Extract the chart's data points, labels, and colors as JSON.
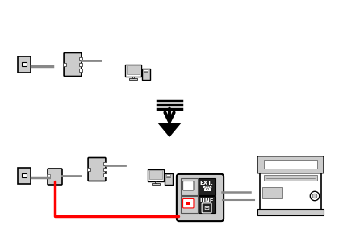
{
  "bg_color": "#ffffff",
  "line_color": "#000000",
  "red_color": "#ff0000",
  "gray_color": "#888888",
  "dark_gray": "#555555",
  "light_gray": "#cccccc",
  "black": "#000000",
  "dark_box": "#222222",
  "figsize": [
    4.25,
    3.0
  ],
  "dpi": 100
}
